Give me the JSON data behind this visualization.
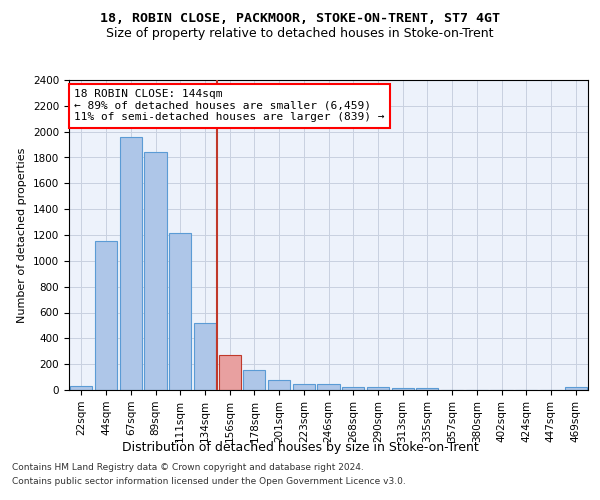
{
  "title1": "18, ROBIN CLOSE, PACKMOOR, STOKE-ON-TRENT, ST7 4GT",
  "title2": "Size of property relative to detached houses in Stoke-on-Trent",
  "xlabel": "Distribution of detached houses by size in Stoke-on-Trent",
  "ylabel": "Number of detached properties",
  "footer1": "Contains HM Land Registry data © Crown copyright and database right 2024.",
  "footer2": "Contains public sector information licensed under the Open Government Licence v3.0.",
  "annotation_line1": "18 ROBIN CLOSE: 144sqm",
  "annotation_line2": "← 89% of detached houses are smaller (6,459)",
  "annotation_line3": "11% of semi-detached houses are larger (839) →",
  "bar_color": "#aec6e8",
  "bar_edge_color": "#5b9bd5",
  "highlight_color": "#e8a0a0",
  "highlight_edge_color": "#c0392b",
  "vline_color": "#c0392b",
  "categories": [
    "22sqm",
    "44sqm",
    "67sqm",
    "89sqm",
    "111sqm",
    "134sqm",
    "156sqm",
    "178sqm",
    "201sqm",
    "223sqm",
    "246sqm",
    "268sqm",
    "290sqm",
    "313sqm",
    "335sqm",
    "357sqm",
    "380sqm",
    "402sqm",
    "424sqm",
    "447sqm",
    "469sqm"
  ],
  "values": [
    30,
    1150,
    1960,
    1840,
    1215,
    515,
    270,
    155,
    80,
    50,
    45,
    22,
    20,
    12,
    15,
    0,
    0,
    0,
    0,
    0,
    20
  ],
  "highlight_index": 6,
  "vline_x": 5.5,
  "ylim": [
    0,
    2400
  ],
  "yticks": [
    0,
    200,
    400,
    600,
    800,
    1000,
    1200,
    1400,
    1600,
    1800,
    2000,
    2200,
    2400
  ],
  "background_color": "#edf2fb",
  "grid_color": "#c8d0e0",
  "title1_fontsize": 9.5,
  "title2_fontsize": 9,
  "ylabel_fontsize": 8,
  "xlabel_fontsize": 9,
  "tick_fontsize": 7.5,
  "annot_fontsize": 8
}
